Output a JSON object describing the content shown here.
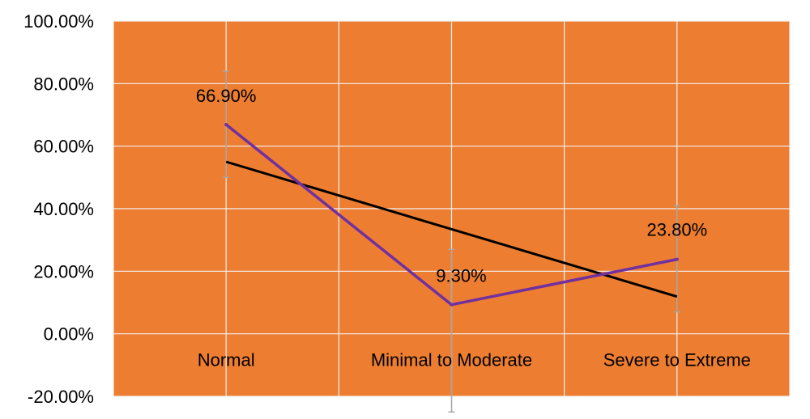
{
  "chart_data": {
    "type": "line",
    "categories": [
      "Normal",
      "Minimal to Moderate",
      "Severe to Extreme"
    ],
    "ylim": [
      -20,
      100
    ],
    "yticks": [
      -20,
      0,
      20,
      40,
      60,
      80,
      100
    ],
    "ytick_labels": [
      "-20.00%",
      "0.00%",
      "20.00%",
      "40.00%",
      "60.00%",
      "80.00%",
      "100.00%"
    ],
    "grid": true,
    "series": [
      {
        "values": [
          66.9,
          9.3,
          23.8
        ],
        "data_labels": [
          "66.90%",
          "9.30%",
          "23.80%"
        ],
        "error_bars": [
          [
            50,
            84
          ],
          [
            -25,
            27
          ],
          [
            7,
            41
          ]
        ],
        "color": "#7030A0"
      }
    ],
    "trendline": {
      "type": "linear",
      "values": [
        55,
        33.3,
        11.9
      ],
      "color": "#000000"
    },
    "colors": {
      "plot_background": "#ED7D31",
      "gridline": "#F2F2F2",
      "error_bar": "#A6A6A6",
      "text": "#000000"
    }
  }
}
